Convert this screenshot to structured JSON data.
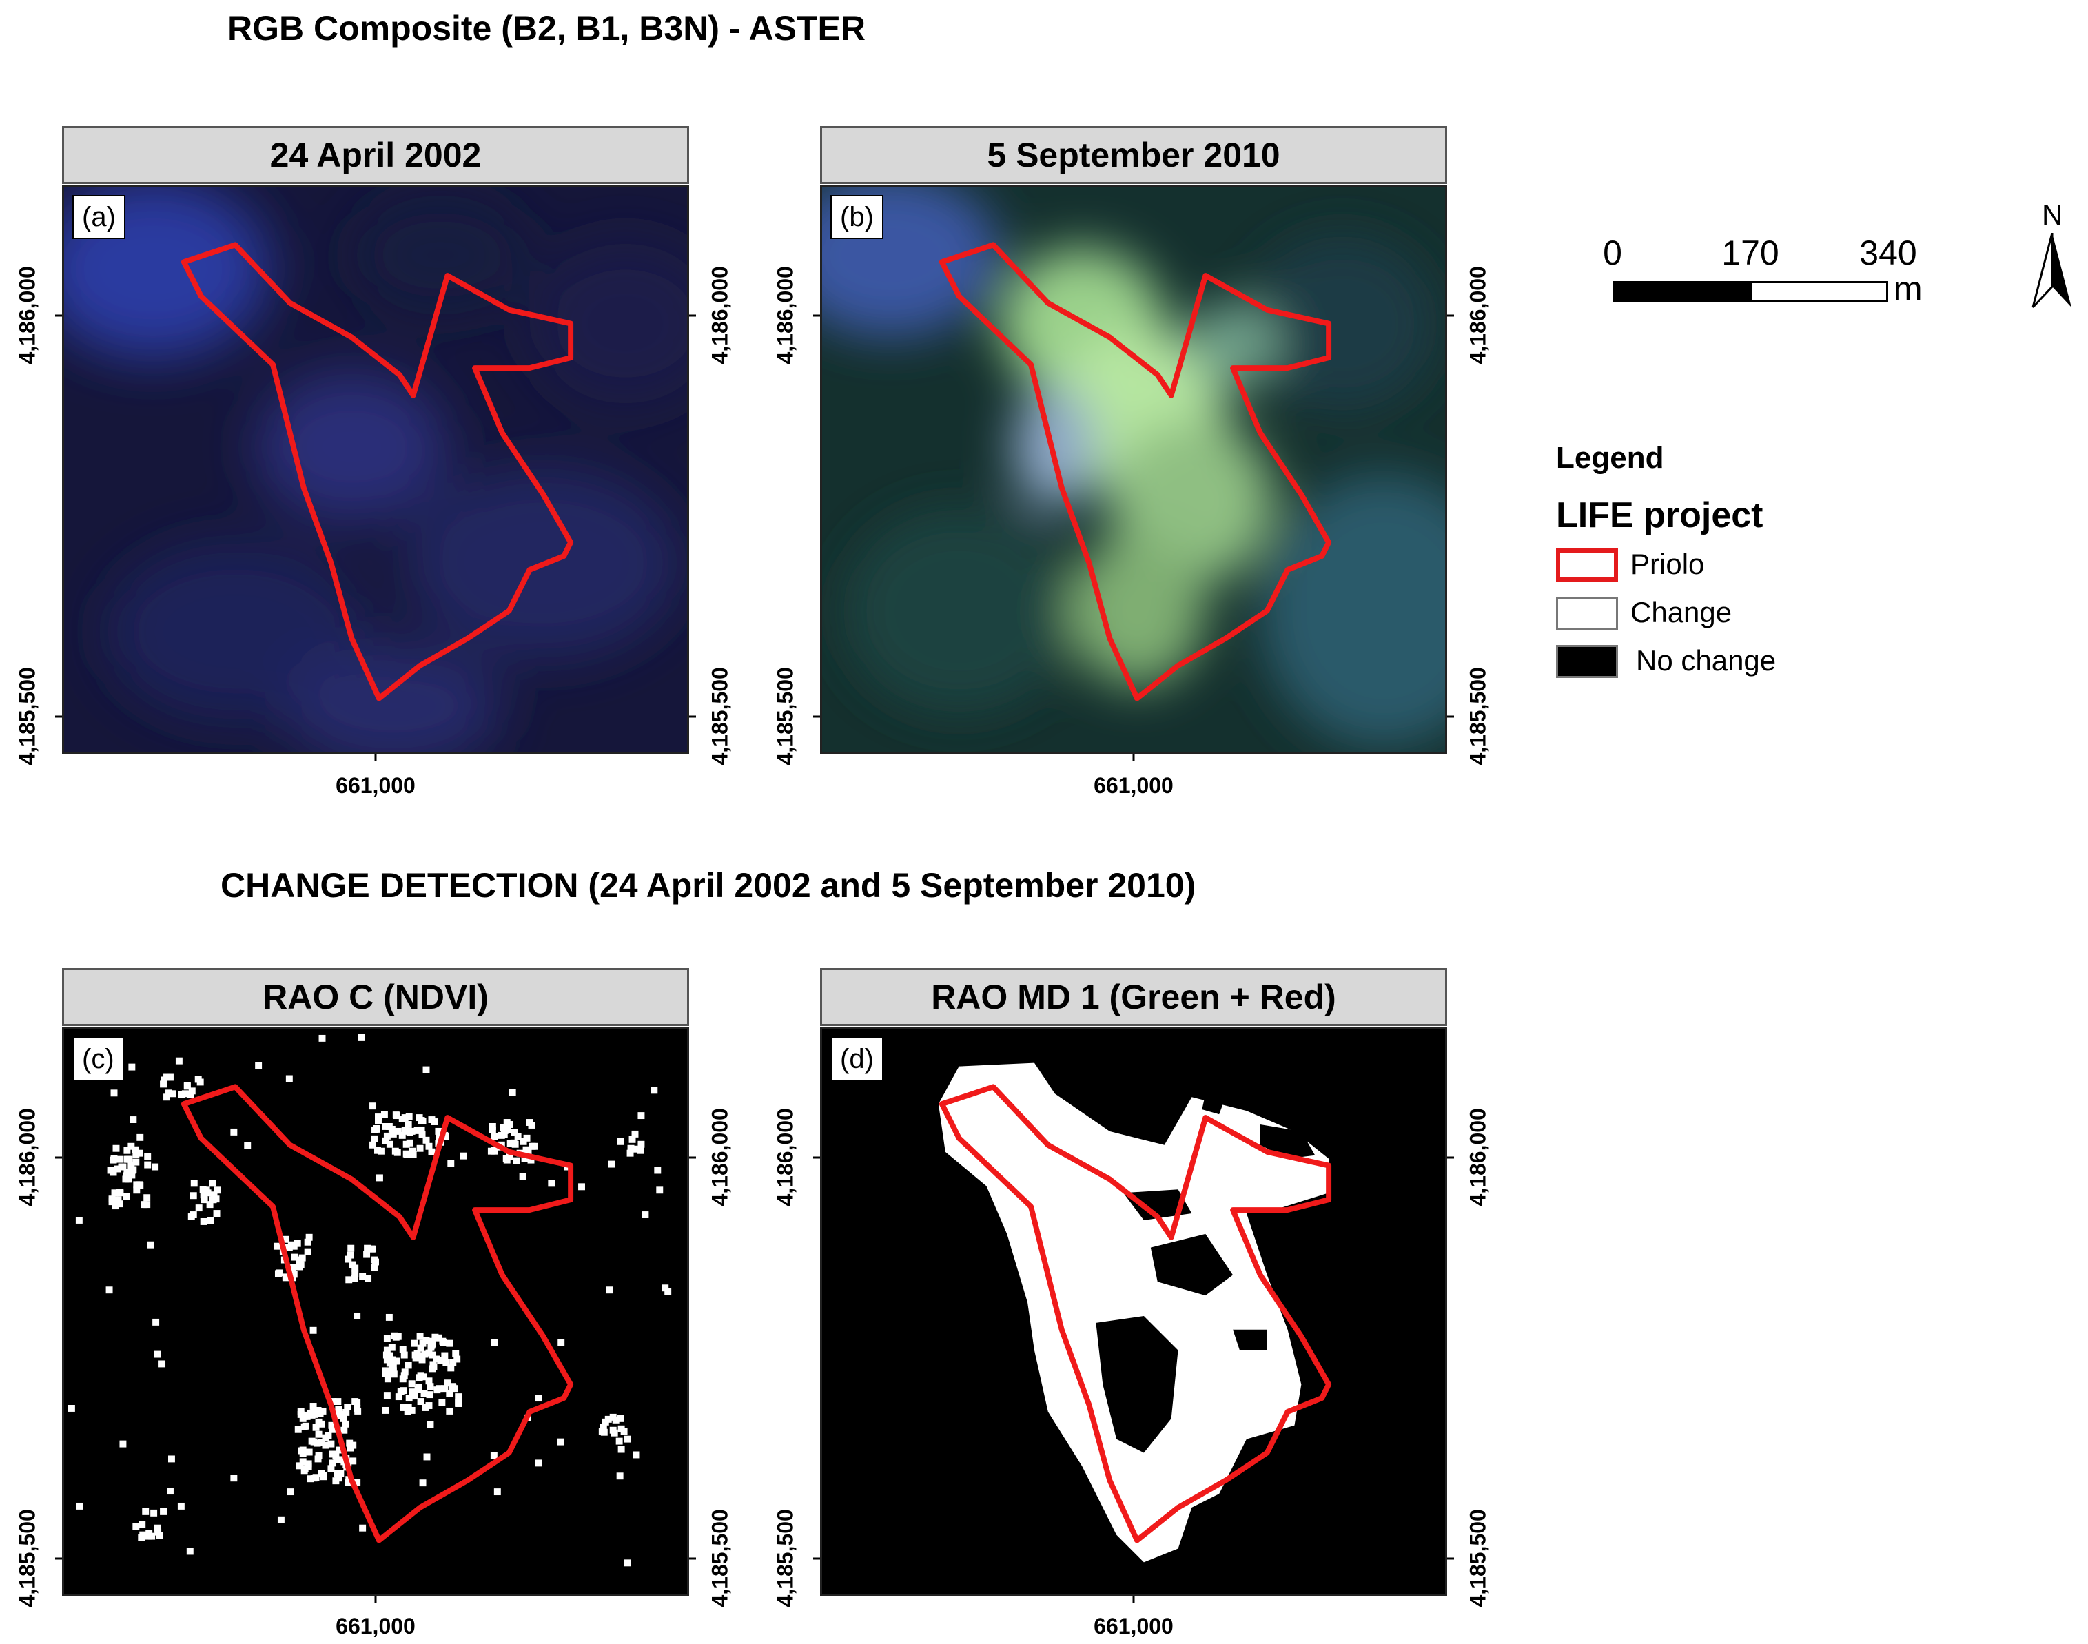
{
  "titles": {
    "top": "RGB Composite (B2, B1, B3N) - ASTER",
    "bottom": "CHANGE DETECTION (24 April 2002 and 5 September 2010)"
  },
  "panels": [
    {
      "id": "a",
      "header": "24 April 2002",
      "letter": "(a)",
      "x_tick": "661,000",
      "y_tick_top": "4,186,000",
      "y_tick_bottom": "4,185,500"
    },
    {
      "id": "b",
      "header": "5 September 2010",
      "letter": "(b)",
      "x_tick": "661,000",
      "y_tick_top": "4,186,000",
      "y_tick_bottom": "4,185,500"
    },
    {
      "id": "c",
      "header": "RAO C (NDVI)",
      "letter": "(c)",
      "x_tick": "661,000",
      "y_tick_top": "4,186,000",
      "y_tick_bottom": "4,185,500"
    },
    {
      "id": "d",
      "header": "RAO MD 1 (Green + Red)",
      "letter": "(d)",
      "x_tick": "661,000",
      "y_tick_top": "4,186,000",
      "y_tick_bottom": "4,185,500"
    }
  ],
  "scale_bar": {
    "labels": [
      "0",
      "170",
      "340"
    ],
    "unit": "m"
  },
  "north_arrow": {
    "label": "N"
  },
  "legend": {
    "title": "Legend",
    "group": "LIFE project",
    "items": [
      {
        "label": "Priolo",
        "color": "#e41a1c"
      },
      {
        "label": "Change",
        "color": "#ffffff"
      },
      {
        "label": "No change",
        "color": "#000000"
      }
    ]
  }
}
